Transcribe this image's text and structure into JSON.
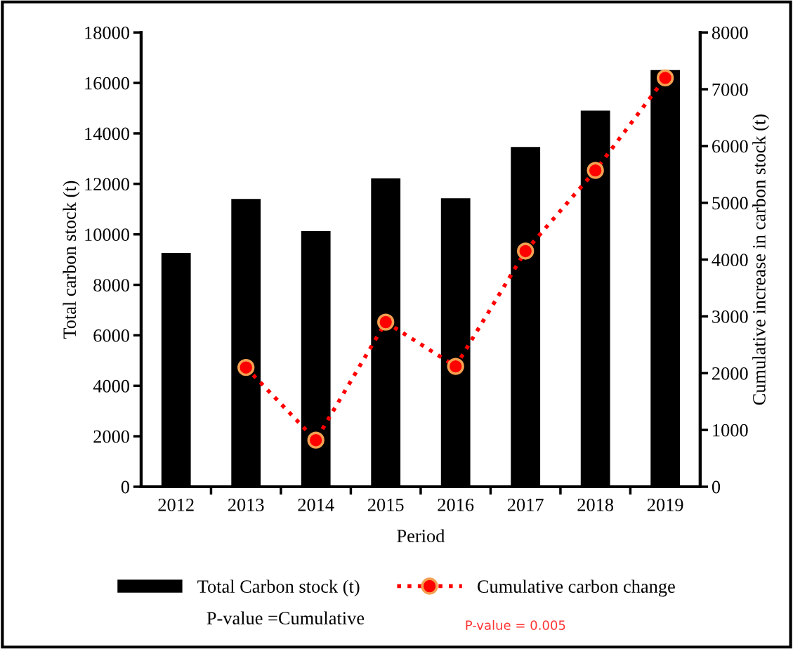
{
  "chart_data": {
    "type": "bar",
    "xlabel": "Period",
    "ylabel": "Total carbon stock (t)",
    "y2label": "Cumulative increase in carbon stock (t)",
    "categories": [
      "2012",
      "2013",
      "2014",
      "2015",
      "2016",
      "2017",
      "2018",
      "2019"
    ],
    "series": [
      {
        "name": "Total Carbon stock (t)",
        "color": "#000000",
        "values": [
          9270,
          11400,
          10130,
          12220,
          11430,
          13460,
          14900,
          16510
        ]
      },
      {
        "name": "Cumulative carbon change",
        "type": "line",
        "axis": "y2",
        "color": "#ff0000",
        "marker": "circle",
        "line_style": "dotted",
        "values": [
          null,
          2100,
          820,
          2900,
          2120,
          4150,
          5570,
          7200
        ]
      }
    ],
    "ylim": [
      0,
      18000
    ],
    "yticks": [
      0,
      2000,
      4000,
      6000,
      8000,
      10000,
      12000,
      14000,
      16000,
      18000
    ],
    "y2lim": [
      0,
      8000
    ],
    "y2ticks": [
      0,
      1000,
      2000,
      3000,
      4000,
      5000,
      6000,
      7000,
      8000
    ],
    "grid": false,
    "legend": "bottom",
    "annotations": [
      "P-value =Cumulative",
      "P-value = 0.005"
    ]
  }
}
